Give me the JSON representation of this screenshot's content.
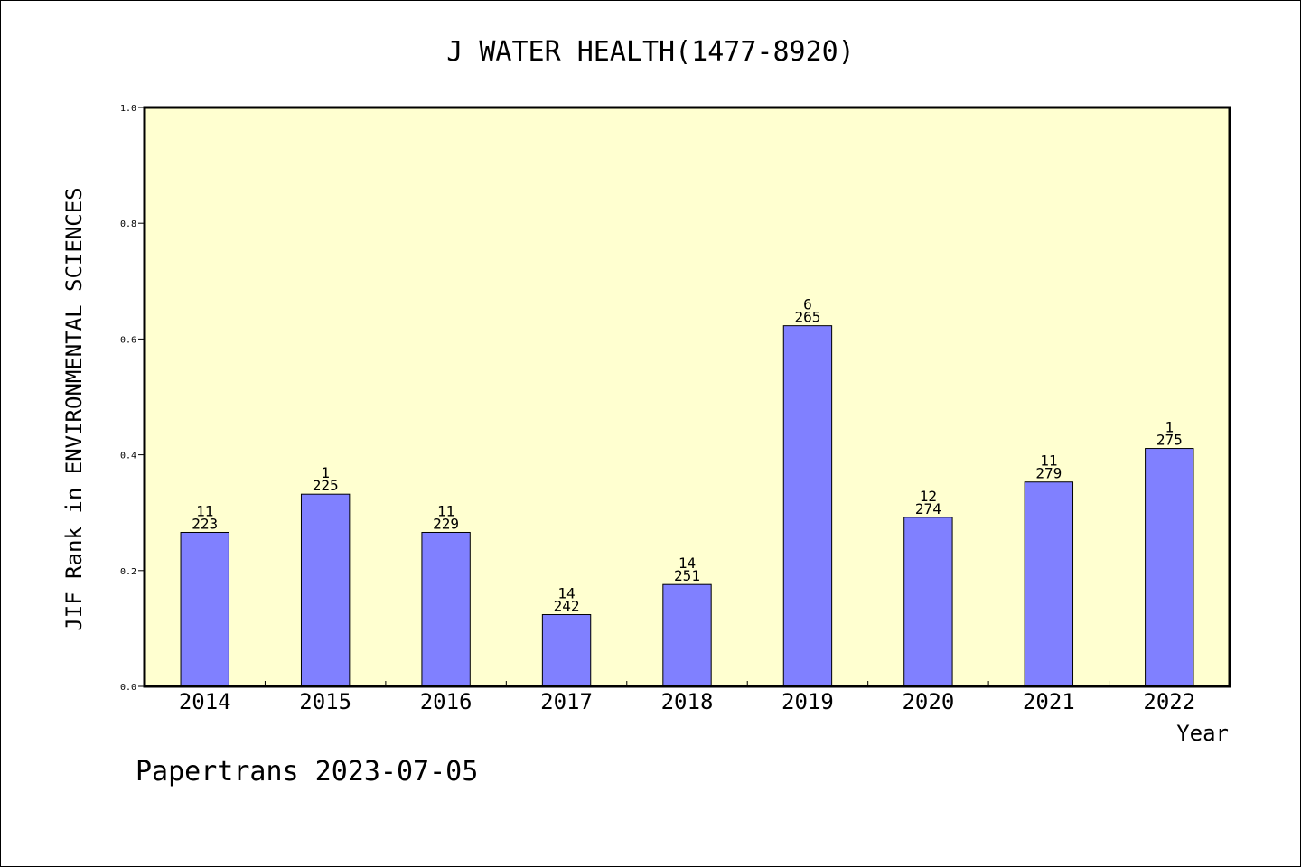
{
  "chart_data": {
    "type": "bar",
    "title": "J WATER HEALTH(1477-8920)",
    "xlabel": "Year",
    "ylabel": "JIF Rank in ENVIRONMENTAL SCIENCES",
    "ylim": [
      0,
      1.0
    ],
    "yticks": [
      "0.0",
      "0.2",
      "0.4",
      "0.6",
      "0.8",
      "1.0"
    ],
    "categories": [
      "2014",
      "2015",
      "2016",
      "2017",
      "2018",
      "2019",
      "2020",
      "2021",
      "2022"
    ],
    "values": [
      0.266,
      0.332,
      0.266,
      0.124,
      0.176,
      0.623,
      0.292,
      0.353,
      0.411
    ],
    "label_top": [
      "11",
      "1",
      "11",
      "14",
      "14",
      "6",
      "12",
      "11",
      "1"
    ],
    "label_bottom": [
      "223",
      "225",
      "229",
      "242",
      "251",
      "265",
      "274",
      "279",
      "275"
    ],
    "grid": false,
    "legend": "none",
    "colors": {
      "plot_background": "#ffffd0",
      "bar_fill": "#8080ff",
      "bar_stroke": "#000000"
    }
  },
  "footer": "Papertrans 2023-07-05"
}
